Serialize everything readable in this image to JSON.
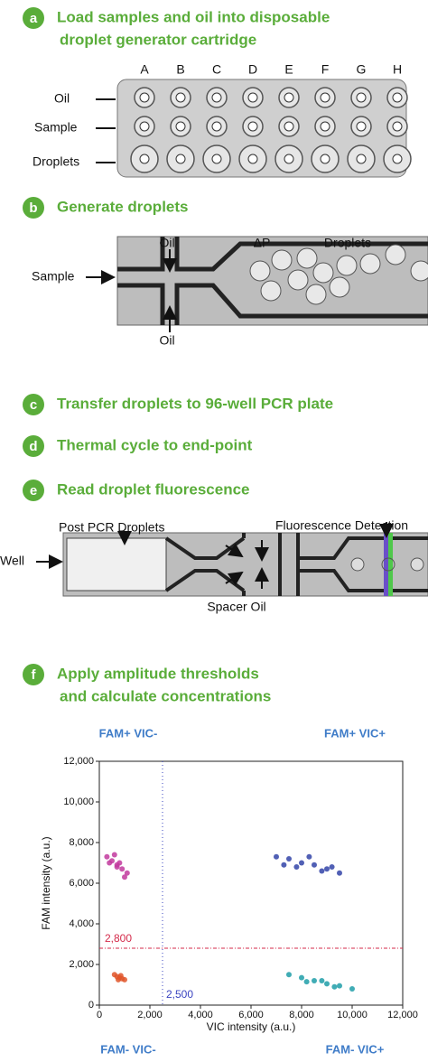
{
  "steps": [
    {
      "letter": "a",
      "lines": [
        "Load samples and oil into disposable",
        "droplet generator cartridge"
      ]
    },
    {
      "letter": "b",
      "lines": [
        "Generate droplets"
      ]
    },
    {
      "letter": "c",
      "lines": [
        "Transfer droplets to 96-well PCR plate"
      ]
    },
    {
      "letter": "d",
      "lines": [
        "Thermal cycle to end-point"
      ]
    },
    {
      "letter": "e",
      "lines": [
        "Read droplet fluorescence"
      ]
    },
    {
      "letter": "f",
      "lines": [
        "Apply amplitude thresholds",
        "and calculate concentrations"
      ]
    }
  ],
  "cartridge": {
    "columns": [
      "A",
      "B",
      "C",
      "D",
      "E",
      "F",
      "G",
      "H"
    ],
    "rows": [
      "Oil",
      "Sample",
      "Droplets"
    ]
  },
  "generator": {
    "oil_top": "Oil",
    "pressure": "ΔP",
    "droplets": "Droplets",
    "sample": "Sample",
    "oil_bottom": "Oil"
  },
  "reader": {
    "post_pcr": "Post PCR Droplets",
    "detection": "Fluorescence Detection",
    "well": "Well",
    "spacer": "Spacer Oil"
  },
  "chart_data": {
    "type": "scatter",
    "xlabel": "VIC intensity (a.u.)",
    "ylabel": "FAM intensity (a.u.)",
    "xlim": [
      0,
      12000
    ],
    "ylim": [
      0,
      12000
    ],
    "xticks": [
      0,
      {
        "value": 2000,
        "label": "2,000"
      },
      {
        "value": 4000,
        "label": "4,000"
      },
      {
        "value": 6000,
        "label": "6,000"
      },
      {
        "value": 8000,
        "label": "8,000"
      },
      {
        "value": 10000,
        "label": "10,000"
      },
      {
        "value": 12000,
        "label": "12,000"
      }
    ],
    "yticks": [
      0,
      {
        "value": 2000,
        "label": "2,000"
      },
      {
        "value": 4000,
        "label": "4,000"
      },
      {
        "value": 6000,
        "label": "6,000"
      },
      {
        "value": 8000,
        "label": "8,000"
      },
      {
        "value": 10000,
        "label": "10,000"
      },
      {
        "value": 12000,
        "label": "12,000"
      }
    ],
    "thresholds": {
      "fam": {
        "value": 2800,
        "label": "2,800",
        "color": "#d42a4a"
      },
      "vic": {
        "value": 2500,
        "label": "2,500",
        "color": "#3a44c0"
      }
    },
    "series": [
      {
        "name": "FAM+ VIC-",
        "color": "#c23a9e",
        "x": [
          300,
          500,
          700,
          900,
          1100,
          600,
          800,
          400,
          1000,
          700
        ],
        "y": [
          7300,
          7100,
          6900,
          6700,
          6500,
          7400,
          7000,
          7000,
          6300,
          6800
        ]
      },
      {
        "name": "FAM+ VIC+",
        "color": "#3344a8",
        "x": [
          7000,
          7500,
          8000,
          8500,
          9000,
          9500,
          7800,
          8300,
          8800,
          7300,
          9200
        ],
        "y": [
          7300,
          7200,
          7000,
          6900,
          6700,
          6500,
          6800,
          7300,
          6600,
          6900,
          6800
        ]
      },
      {
        "name": "FAM- VIC-",
        "color": "#e0562a",
        "x": [
          600,
          700,
          800,
          900,
          1000,
          750,
          850
        ],
        "y": [
          1500,
          1400,
          1350,
          1300,
          1250,
          1250,
          1450
        ]
      },
      {
        "name": "FAM- VIC+",
        "color": "#1f9ea8",
        "x": [
          7500,
          8000,
          8500,
          9000,
          9500,
          10000,
          8200,
          8800,
          9300
        ],
        "y": [
          1500,
          1350,
          1200,
          1050,
          950,
          800,
          1150,
          1200,
          900
        ]
      }
    ]
  }
}
